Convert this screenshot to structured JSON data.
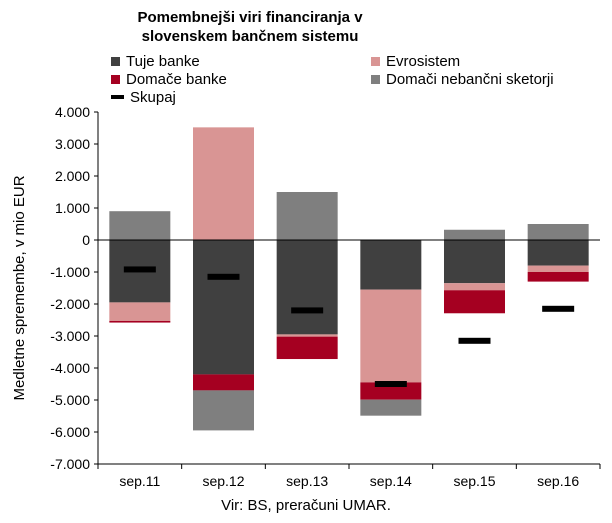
{
  "chart_data": {
    "type": "bar",
    "stacked": true,
    "title": "Pomembnejši viri financiranja v slovenskem bančnem sistemu",
    "ylabel": "Medletne spremembe, v mio EUR",
    "categories": [
      "sep.11",
      "sep.12",
      "sep.13",
      "sep.14",
      "sep.15",
      "sep.16"
    ],
    "ylim": [
      -7000,
      4000
    ],
    "yticks": [
      4000,
      3000,
      2000,
      1000,
      0,
      -1000,
      -2000,
      -3000,
      -4000,
      -5000,
      -6000,
      -7000
    ],
    "ytick_labels": [
      "4.000",
      "3.000",
      "2.000",
      "1.000",
      "0",
      "-1.000",
      "-2.000",
      "-3.000",
      "-4.000",
      "-5.000",
      "-6.000",
      "-7.000"
    ],
    "series": [
      {
        "name": "Tuje banke",
        "color": "#404040",
        "values": [
          -1950,
          -4200,
          -2950,
          -1550,
          -1350,
          -800
        ]
      },
      {
        "name": "Evrosistem",
        "color": "#d99594",
        "values": [
          -580,
          3520,
          -70,
          -2900,
          -220,
          -200
        ]
      },
      {
        "name": "Domače banke",
        "color": "#a50021",
        "values": [
          -50,
          -500,
          -700,
          -540,
          -720,
          -300
        ]
      },
      {
        "name": "Domači nebančni sketorji",
        "color": "#7f7f7f",
        "values": [
          900,
          -1250,
          1500,
          -500,
          320,
          500
        ]
      }
    ],
    "total": {
      "name": "Skupaj",
      "color": "#000000",
      "values": [
        -920,
        -1150,
        -2200,
        -4500,
        -3150,
        -2150
      ]
    },
    "grid": false,
    "legend_position": "top"
  },
  "source": "Vir: BS, preračuni UMAR."
}
